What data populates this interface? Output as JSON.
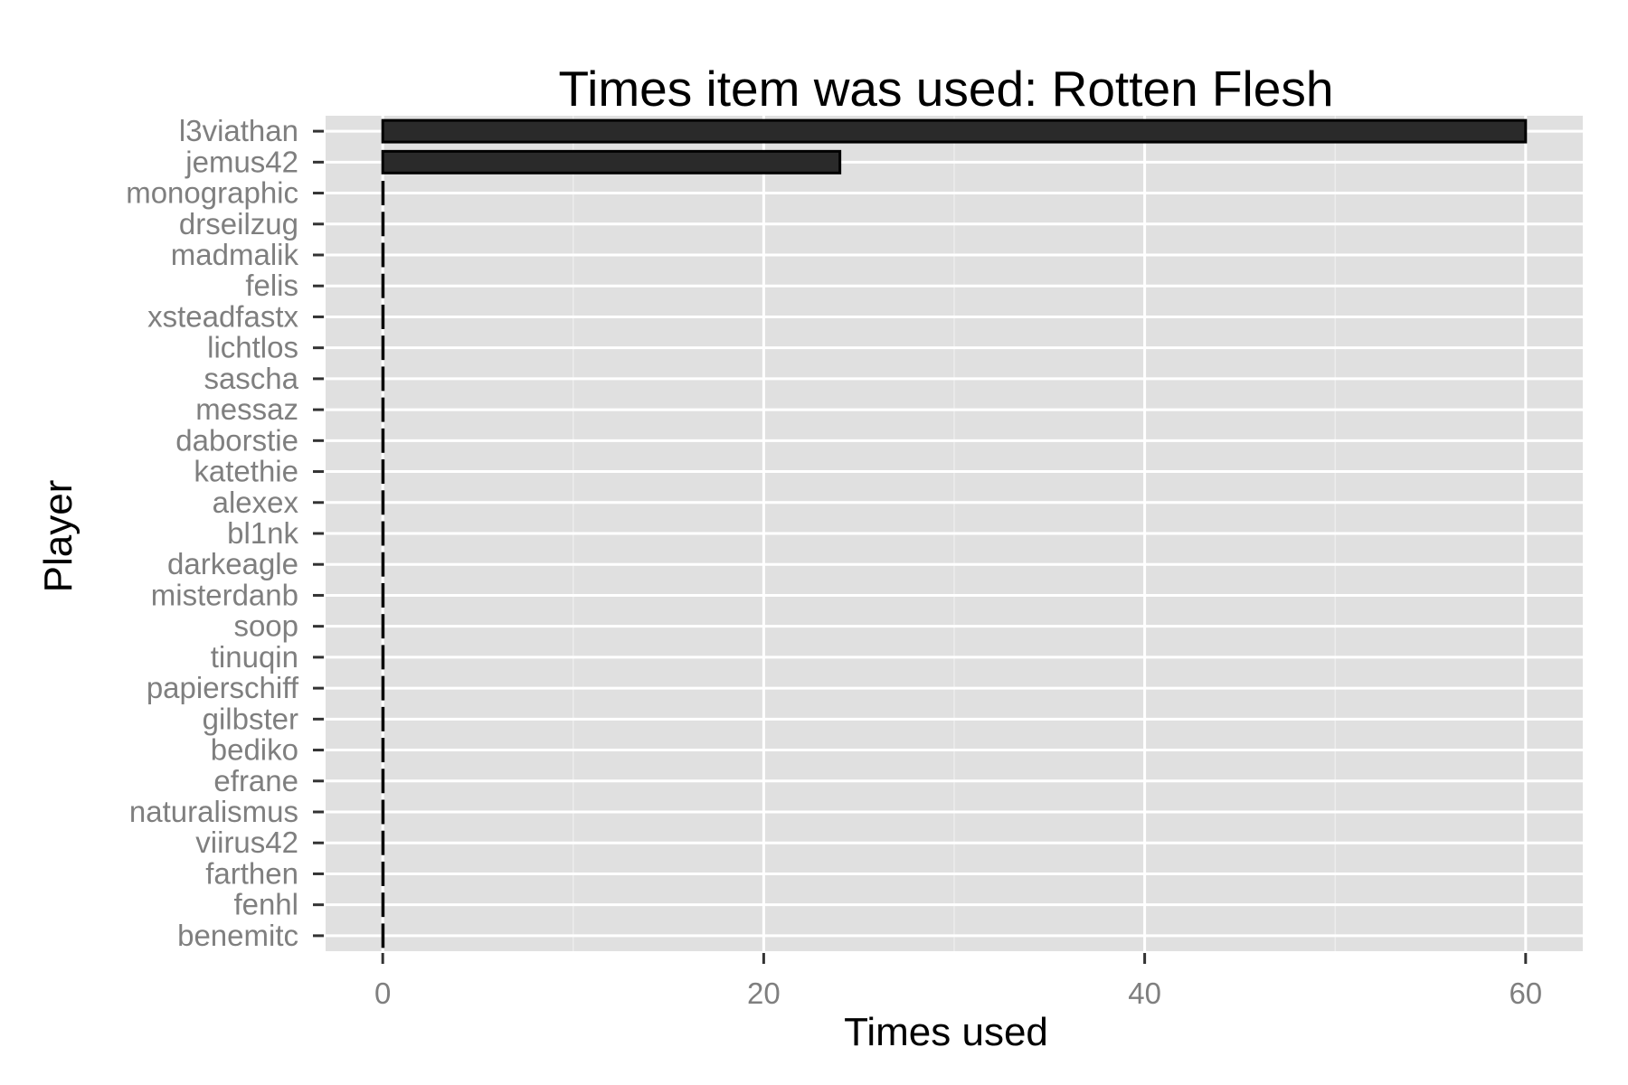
{
  "chart_data": {
    "type": "bar",
    "orientation": "horizontal",
    "title": "Times item was used: Rotten Flesh",
    "xlabel": "Times used",
    "ylabel": "Player",
    "xlim": [
      -3,
      63
    ],
    "xticks": [
      0,
      20,
      40,
      60
    ],
    "grid": true,
    "legend": "none",
    "colors": {
      "panel": "#e0e0e0",
      "grid_major": "#ffffff",
      "grid_minor": "#ececec",
      "bar_fill": "#2a2a2a",
      "bar_outline": "#000000",
      "tick_label": "#7f7f7f"
    },
    "categories": [
      "l3viathan",
      "jemus42",
      "monographic",
      "drseilzug",
      "madmalik",
      "felis",
      "xsteadfastx",
      "lichtlos",
      "sascha",
      "messaz",
      "daborstie",
      "katethie",
      "alexex",
      "bl1nk",
      "darkeagle",
      "misterdanb",
      "soop",
      "tinuqin",
      "papierschiff",
      "gilbster",
      "bediko",
      "efrane",
      "naturalismus",
      "viirus42",
      "farthen",
      "fenhl",
      "benemitc"
    ],
    "values": [
      60,
      24,
      0,
      0,
      0,
      0,
      0,
      0,
      0,
      0,
      0,
      0,
      0,
      0,
      0,
      0,
      0,
      0,
      0,
      0,
      0,
      0,
      0,
      0,
      0,
      0,
      0
    ]
  }
}
